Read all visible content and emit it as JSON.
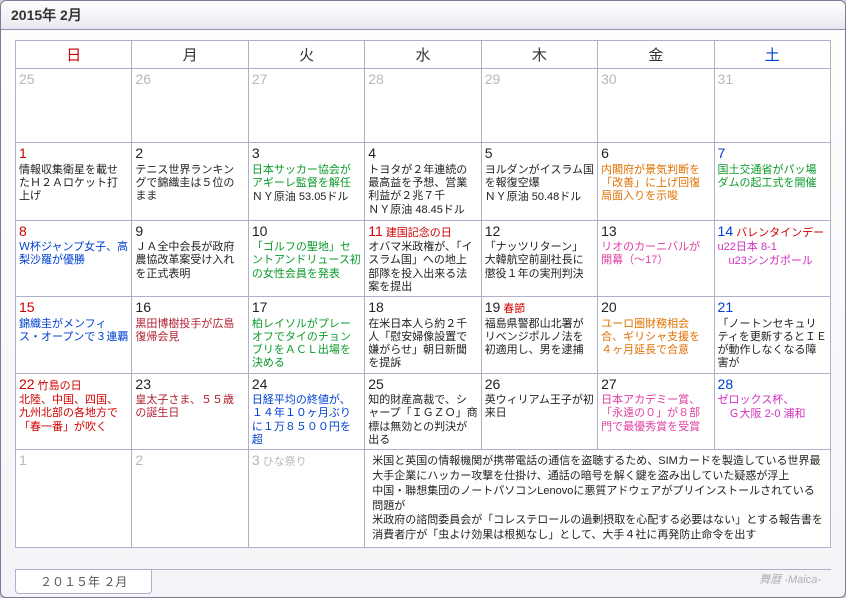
{
  "title": "2015年 2月",
  "tab": "２０１５年 ２月",
  "brand": "舞暦 -Maica-",
  "dow": [
    {
      "label": "日",
      "cls": "sun"
    },
    {
      "label": "月",
      "cls": "wd"
    },
    {
      "label": "火",
      "cls": "wd"
    },
    {
      "label": "水",
      "cls": "wd"
    },
    {
      "label": "木",
      "cls": "wd"
    },
    {
      "label": "金",
      "cls": "wd"
    },
    {
      "label": "土",
      "cls": "sat"
    }
  ],
  "weeks": [
    {
      "cls": "",
      "cells": [
        {
          "num": "25",
          "ncls": "grey",
          "events": []
        },
        {
          "num": "26",
          "ncls": "grey",
          "events": []
        },
        {
          "num": "27",
          "ncls": "grey",
          "events": []
        },
        {
          "num": "28",
          "ncls": "grey",
          "events": []
        },
        {
          "num": "29",
          "ncls": "grey",
          "events": []
        },
        {
          "num": "30",
          "ncls": "grey",
          "events": []
        },
        {
          "num": "31",
          "ncls": "grey",
          "events": []
        }
      ]
    },
    {
      "cls": "",
      "cells": [
        {
          "num": "1",
          "ncls": "sun",
          "events": [
            {
              "t": "情報収集衛星を載せたＨ２Ａロケット打上げ",
              "c": "c-blk"
            }
          ]
        },
        {
          "num": "2",
          "ncls": "blk",
          "events": [
            {
              "t": "テニス世界ランキングで錦織圭は５位のまま",
              "c": "c-blk"
            }
          ]
        },
        {
          "num": "3",
          "ncls": "blk",
          "events": [
            {
              "t": "日本サッカー協会がアギーレ監督を解任",
              "c": "c-grn"
            },
            {
              "t": "ＮＹ原油 53.05ドル",
              "c": "c-plain"
            }
          ]
        },
        {
          "num": "4",
          "ncls": "blk",
          "events": [
            {
              "t": "トヨタが２年連続の最高益を予想、営業利益が２兆７千",
              "c": "c-blk"
            },
            {
              "t": "ＮＹ原油 48.45ドル",
              "c": "c-plain"
            }
          ]
        },
        {
          "num": "5",
          "ncls": "blk",
          "events": [
            {
              "t": "ヨルダンがイスラム国を報復空爆",
              "c": "c-blk"
            },
            {
              "t": "ＮＹ原油 50.48ドル",
              "c": "c-plain"
            }
          ]
        },
        {
          "num": "6",
          "ncls": "blk",
          "events": [
            {
              "t": "内閣府が景気判断を「改善」に上げ回復局面入りを示唆",
              "c": "c-org"
            }
          ]
        },
        {
          "num": "7",
          "ncls": "sat",
          "events": [
            {
              "t": "国土交通省がパッ場ダムの起工式を開催",
              "c": "c-grn"
            }
          ]
        }
      ]
    },
    {
      "cls": "",
      "cells": [
        {
          "num": "8",
          "ncls": "sun",
          "events": [
            {
              "t": "Ｗ杯ジャンプ女子、高梨沙羅が優勝",
              "c": "c-blue"
            }
          ]
        },
        {
          "num": "9",
          "ncls": "blk",
          "events": [
            {
              "t": "ＪＡ全中会長が政府農協改革案受け入れを正式表明",
              "c": "c-blk"
            }
          ]
        },
        {
          "num": "10",
          "ncls": "blk",
          "events": [
            {
              "t": "「ゴルフの聖地」セントアンドリュース初の女性会員を発表",
              "c": "c-grn"
            }
          ]
        },
        {
          "num": "11",
          "ncls": "sun",
          "holiday": "建国記念の日",
          "events": [
            {
              "t": "オバマ米政権が、「イスラム国」への地上部隊を投入出来る法案を提出",
              "c": "c-blk"
            }
          ]
        },
        {
          "num": "12",
          "ncls": "blk",
          "events": [
            {
              "t": "「ナッツリターン」大韓航空前副社長に懲役１年の実刑判決",
              "c": "c-blk"
            }
          ]
        },
        {
          "num": "13",
          "ncls": "blk",
          "events": [
            {
              "t": "リオのカーニバルが開幕（～17）",
              "c": "c-pink"
            }
          ]
        },
        {
          "num": "14",
          "ncls": "sat",
          "holiday": "バレンタインデー",
          "events": [
            {
              "t": "u22日本 8-1",
              "c": "c-mag"
            },
            {
              "t": "　u23シンガポール",
              "c": "c-mag"
            }
          ]
        }
      ]
    },
    {
      "cls": "",
      "cells": [
        {
          "num": "15",
          "ncls": "sun",
          "events": [
            {
              "t": "錦織圭がメンフィス・オープンで３連覇",
              "c": "c-blue"
            }
          ]
        },
        {
          "num": "16",
          "ncls": "blk",
          "events": [
            {
              "t": "黒田博樹投手が広島復帰会見",
              "c": "c-darkred"
            }
          ]
        },
        {
          "num": "17",
          "ncls": "blk",
          "events": [
            {
              "t": "柏レイソルがプレーオフでタイのチョンブリをＡＣＬ出場を決める",
              "c": "c-grn"
            }
          ]
        },
        {
          "num": "18",
          "ncls": "blk",
          "events": [
            {
              "t": "在米日本人ら約２千人「慰安婦像設置で嫌がらせ」朝日新聞を提訴",
              "c": "c-blk"
            }
          ]
        },
        {
          "num": "19",
          "ncls": "blk",
          "holiday": "春節",
          "events": [
            {
              "t": "福島県警郡山北署がリベンジポルノ法を初適用し、男を逮捕",
              "c": "c-blk"
            }
          ]
        },
        {
          "num": "20",
          "ncls": "blk",
          "events": [
            {
              "t": "ユーロ圏財務相会合、ギリシャ支援を４ヶ月延長で合意",
              "c": "c-org"
            }
          ]
        },
        {
          "num": "21",
          "ncls": "sat",
          "events": [
            {
              "t": "「ノートンセキュリティを更新するとＩＥが動作しなくなる障害が",
              "c": "c-blk"
            }
          ]
        }
      ]
    },
    {
      "cls": "",
      "cells": [
        {
          "num": "22",
          "ncls": "sun",
          "holiday": "竹島の日",
          "events": [
            {
              "t": "北陸、中国、四国、九州北部の各地方で「春一番」が吹く",
              "c": "c-red"
            }
          ]
        },
        {
          "num": "23",
          "ncls": "blk",
          "events": [
            {
              "t": "皇太子さま、５５歳の誕生日",
              "c": "c-darkred"
            }
          ]
        },
        {
          "num": "24",
          "ncls": "blk",
          "events": [
            {
              "t": "日経平均の終値が、１４年１０ヶ月ぶりに１万８５００円を超",
              "c": "c-blue"
            }
          ]
        },
        {
          "num": "25",
          "ncls": "blk",
          "events": [
            {
              "t": "知的財産高裁で、シャープ「ＩＧＺＯ」商標は無効との判決が出る",
              "c": "c-blk"
            }
          ]
        },
        {
          "num": "26",
          "ncls": "blk",
          "events": [
            {
              "t": "英ウィリアム王子が初来日",
              "c": "c-blk"
            }
          ]
        },
        {
          "num": "27",
          "ncls": "blk",
          "events": [
            {
              "t": "日本アカデミー賞、「永遠の０」が８部門で最優秀賞を受賞",
              "c": "c-pink"
            }
          ]
        },
        {
          "num": "28",
          "ncls": "sat",
          "events": [
            {
              "t": "ゼロックス杯、",
              "c": "c-mag"
            },
            {
              "t": "　Ｇ大阪 2-0 浦和",
              "c": "c-mag"
            }
          ]
        }
      ]
    },
    {
      "cls": "short",
      "cells": [
        {
          "num": "1",
          "ncls": "grey",
          "events": []
        },
        {
          "num": "2",
          "ncls": "grey",
          "events": []
        },
        {
          "num": "3",
          "ncls": "grey",
          "holiday_grey": "ひな祭り",
          "events": []
        },
        {
          "colspan": 4,
          "news": [
            "米国と英国の情報機関が携帯電話の通信を盗聴するため、SIMカードを製造している世界最大手企業にハッカー攻撃を仕掛け、通話の暗号を解く鍵を盗み出していた疑惑が浮上",
            "中国・聯想集団のノートパソコンLenovoに悪質アドウェアがプリインストールされている問題が",
            "米政府の諮問委員会が「コレステロールの過剰摂取を心配する必要はない」とする報告書を",
            "消費者庁が「虫よけ効果は根拠なし」として、大手４社に再発防止命令を出す"
          ]
        }
      ]
    }
  ]
}
